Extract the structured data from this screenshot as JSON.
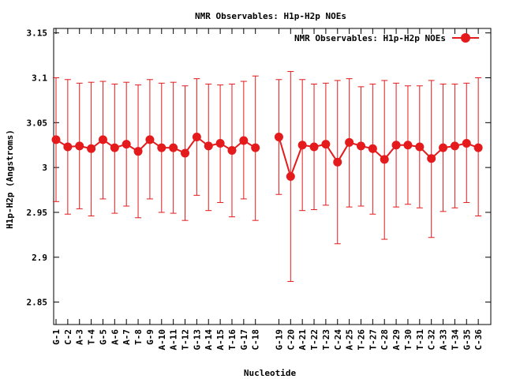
{
  "chart_data": {
    "type": "line",
    "title": "NMR Observables: H1p-H2p NOEs",
    "xlabel": "Nucleotide",
    "ylabel": "H1p-H2p (Angstroms)",
    "ylim": [
      2.825,
      3.155
    ],
    "yticks": [
      2.85,
      2.9,
      2.95,
      3,
      3.05,
      3.1,
      3.15
    ],
    "ytick_labels": [
      "2.85",
      "2.9",
      "2.95",
      "3",
      "3.05",
      "3.1",
      "3.15"
    ],
    "legend_position": "top-right",
    "series": [
      {
        "name": "NMR Observables: H1p-H2p NOEs",
        "color": "#e41a1c",
        "segments": [
          {
            "categories": [
              "G-1",
              "C-2",
              "A-3",
              "T-4",
              "G-5",
              "A-6",
              "A-7",
              "T-8",
              "G-9",
              "A-10",
              "A-11",
              "T-12",
              "G-13",
              "A-14",
              "A-15",
              "T-16",
              "G-17",
              "C-18"
            ],
            "values": [
              3.031,
              3.023,
              3.024,
              3.021,
              3.031,
              3.022,
              3.026,
              3.018,
              3.031,
              3.022,
              3.022,
              3.016,
              3.034,
              3.024,
              3.027,
              3.019,
              3.03,
              3.022
            ],
            "err_low": [
              2.962,
              2.948,
              2.954,
              2.946,
              2.965,
              2.949,
              2.957,
              2.944,
              2.965,
              2.95,
              2.949,
              2.941,
              2.969,
              2.952,
              2.961,
              2.945,
              2.965,
              2.941
            ],
            "err_high": [
              3.1,
              3.098,
              3.094,
              3.095,
              3.096,
              3.093,
              3.095,
              3.092,
              3.098,
              3.094,
              3.095,
              3.091,
              3.099,
              3.093,
              3.092,
              3.093,
              3.096,
              3.102
            ]
          },
          {
            "categories": [
              "G-19",
              "C-20",
              "A-21",
              "T-22",
              "T-23",
              "C-24",
              "A-25",
              "T-26",
              "T-27",
              "C-28",
              "A-29",
              "T-30",
              "T-31",
              "C-32",
              "A-33",
              "T-34",
              "G-35",
              "C-36"
            ],
            "values": [
              3.034,
              2.99,
              3.025,
              3.023,
              3.026,
              3.006,
              3.028,
              3.024,
              3.021,
              3.009,
              3.025,
              3.025,
              3.023,
              3.01,
              3.022,
              3.024,
              3.027,
              3.022
            ],
            "err_low": [
              2.97,
              2.873,
              2.952,
              2.953,
              2.958,
              2.915,
              2.956,
              2.957,
              2.948,
              2.92,
              2.956,
              2.959,
              2.955,
              2.922,
              2.951,
              2.955,
              2.961,
              2.946
            ],
            "err_high": [
              3.098,
              3.107,
              3.098,
              3.093,
              3.094,
              3.097,
              3.099,
              3.09,
              3.093,
              3.097,
              3.094,
              3.091,
              3.091,
              3.097,
              3.093,
              3.093,
              3.094,
              3.1
            ]
          }
        ]
      }
    ]
  }
}
